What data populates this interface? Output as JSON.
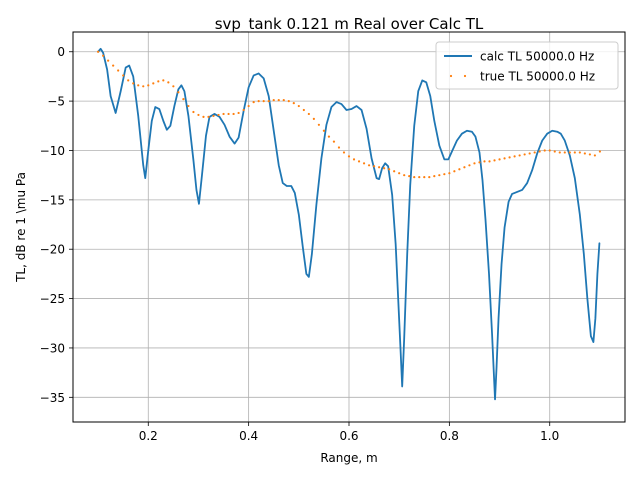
{
  "chart_data": {
    "type": "line",
    "title": "svp_tank 0.121 m Real over Calc TL",
    "xlabel": "Range, m",
    "ylabel": "TL, dB re 1 \\mu Pa",
    "xlim": [
      0.05,
      1.15
    ],
    "ylim": [
      -37.5,
      2
    ],
    "xticks": [
      0.2,
      0.4,
      0.6,
      0.8,
      1.0
    ],
    "xtick_labels": [
      "0.2",
      "0.4",
      "0.6",
      "0.8",
      "1.0"
    ],
    "yticks": [
      0,
      -5,
      -10,
      -15,
      -20,
      -25,
      -30,
      -35
    ],
    "ytick_labels": [
      "0",
      "−5",
      "−10",
      "−15",
      "−20",
      "−25",
      "−30",
      "−35"
    ],
    "grid": true,
    "legend": "upper right",
    "series": [
      {
        "name": "calc TL 50000.0 Hz",
        "style": "solid",
        "color": "#1f77b4",
        "points": [
          [
            0.1,
            0.0
          ],
          [
            0.105,
            0.3
          ],
          [
            0.11,
            -0.1
          ],
          [
            0.118,
            -1.8
          ],
          [
            0.125,
            -4.5
          ],
          [
            0.135,
            -6.2
          ],
          [
            0.145,
            -4.0
          ],
          [
            0.155,
            -1.6
          ],
          [
            0.162,
            -1.4
          ],
          [
            0.17,
            -2.5
          ],
          [
            0.18,
            -6.5
          ],
          [
            0.19,
            -11.5
          ],
          [
            0.194,
            -12.8
          ],
          [
            0.2,
            -10.0
          ],
          [
            0.207,
            -7.0
          ],
          [
            0.214,
            -5.6
          ],
          [
            0.222,
            -5.8
          ],
          [
            0.23,
            -7.0
          ],
          [
            0.237,
            -7.9
          ],
          [
            0.244,
            -7.5
          ],
          [
            0.252,
            -5.5
          ],
          [
            0.26,
            -3.8
          ],
          [
            0.266,
            -3.4
          ],
          [
            0.272,
            -4.0
          ],
          [
            0.28,
            -6.5
          ],
          [
            0.29,
            -11.0
          ],
          [
            0.296,
            -14.0
          ],
          [
            0.301,
            -15.4
          ],
          [
            0.307,
            -12.5
          ],
          [
            0.315,
            -8.5
          ],
          [
            0.322,
            -6.6
          ],
          [
            0.332,
            -6.3
          ],
          [
            0.342,
            -6.6
          ],
          [
            0.352,
            -7.4
          ],
          [
            0.362,
            -8.6
          ],
          [
            0.372,
            -9.3
          ],
          [
            0.38,
            -8.7
          ],
          [
            0.39,
            -6.0
          ],
          [
            0.4,
            -3.6
          ],
          [
            0.41,
            -2.4
          ],
          [
            0.42,
            -2.2
          ],
          [
            0.43,
            -2.7
          ],
          [
            0.44,
            -4.5
          ],
          [
            0.45,
            -8.0
          ],
          [
            0.46,
            -11.5
          ],
          [
            0.468,
            -13.3
          ],
          [
            0.476,
            -13.6
          ],
          [
            0.485,
            -13.6
          ],
          [
            0.492,
            -14.3
          ],
          [
            0.5,
            -16.5
          ],
          [
            0.508,
            -19.8
          ],
          [
            0.515,
            -22.5
          ],
          [
            0.52,
            -22.8
          ],
          [
            0.526,
            -20.5
          ],
          [
            0.535,
            -15.5
          ],
          [
            0.545,
            -10.8
          ],
          [
            0.555,
            -7.4
          ],
          [
            0.565,
            -5.6
          ],
          [
            0.575,
            -5.1
          ],
          [
            0.585,
            -5.3
          ],
          [
            0.595,
            -5.9
          ],
          [
            0.605,
            -5.8
          ],
          [
            0.615,
            -5.5
          ],
          [
            0.625,
            -5.9
          ],
          [
            0.635,
            -7.8
          ],
          [
            0.645,
            -10.8
          ],
          [
            0.655,
            -12.8
          ],
          [
            0.66,
            -12.9
          ],
          [
            0.666,
            -11.8
          ],
          [
            0.672,
            -11.3
          ],
          [
            0.678,
            -11.6
          ],
          [
            0.686,
            -14.5
          ],
          [
            0.693,
            -19.5
          ],
          [
            0.698,
            -25.0
          ],
          [
            0.703,
            -30.5
          ],
          [
            0.706,
            -33.9
          ],
          [
            0.71,
            -29.0
          ],
          [
            0.716,
            -20.5
          ],
          [
            0.722,
            -13.5
          ],
          [
            0.73,
            -7.5
          ],
          [
            0.738,
            -4.0
          ],
          [
            0.746,
            -2.9
          ],
          [
            0.754,
            -3.1
          ],
          [
            0.762,
            -4.5
          ],
          [
            0.77,
            -7.0
          ],
          [
            0.78,
            -9.5
          ],
          [
            0.79,
            -10.9
          ],
          [
            0.798,
            -10.9
          ],
          [
            0.806,
            -10.0
          ],
          [
            0.815,
            -9.0
          ],
          [
            0.825,
            -8.3
          ],
          [
            0.835,
            -8.0
          ],
          [
            0.845,
            -8.1
          ],
          [
            0.852,
            -8.6
          ],
          [
            0.86,
            -10.2
          ],
          [
            0.866,
            -13.0
          ],
          [
            0.872,
            -17.0
          ],
          [
            0.879,
            -22.5
          ],
          [
            0.885,
            -28.5
          ],
          [
            0.889,
            -33.0
          ],
          [
            0.891,
            -35.2
          ],
          [
            0.894,
            -32.0
          ],
          [
            0.898,
            -27.0
          ],
          [
            0.904,
            -21.5
          ],
          [
            0.91,
            -17.8
          ],
          [
            0.918,
            -15.2
          ],
          [
            0.925,
            -14.4
          ],
          [
            0.935,
            -14.2
          ],
          [
            0.945,
            -14.0
          ],
          [
            0.955,
            -13.3
          ],
          [
            0.965,
            -12.0
          ],
          [
            0.975,
            -10.3
          ],
          [
            0.985,
            -9.0
          ],
          [
            0.995,
            -8.3
          ],
          [
            1.005,
            -8.0
          ],
          [
            1.015,
            -8.1
          ],
          [
            1.022,
            -8.3
          ],
          [
            1.03,
            -9.0
          ],
          [
            1.04,
            -10.5
          ],
          [
            1.05,
            -12.8
          ],
          [
            1.06,
            -16.5
          ],
          [
            1.068,
            -20.5
          ],
          [
            1.075,
            -25.0
          ],
          [
            1.082,
            -28.8
          ],
          [
            1.087,
            -29.4
          ],
          [
            1.091,
            -27.0
          ],
          [
            1.095,
            -22.5
          ],
          [
            1.099,
            -19.4
          ]
        ]
      },
      {
        "name": "true TL 50000.0 Hz",
        "style": "dotted",
        "color": "#ff7f0e",
        "points": [
          [
            0.1,
            0.0
          ],
          [
            0.11,
            -0.4
          ],
          [
            0.12,
            -0.9
          ],
          [
            0.13,
            -1.4
          ],
          [
            0.14,
            -1.9
          ],
          [
            0.15,
            -2.4
          ],
          [
            0.16,
            -2.9
          ],
          [
            0.17,
            -3.2
          ],
          [
            0.18,
            -3.4
          ],
          [
            0.19,
            -3.5
          ],
          [
            0.2,
            -3.4
          ],
          [
            0.21,
            -3.2
          ],
          [
            0.22,
            -3.0
          ],
          [
            0.23,
            -2.9
          ],
          [
            0.24,
            -3.1
          ],
          [
            0.25,
            -3.5
          ],
          [
            0.26,
            -4.1
          ],
          [
            0.27,
            -4.8
          ],
          [
            0.28,
            -5.5
          ],
          [
            0.29,
            -6.1
          ],
          [
            0.3,
            -6.4
          ],
          [
            0.31,
            -6.6
          ],
          [
            0.32,
            -6.6
          ],
          [
            0.33,
            -6.5
          ],
          [
            0.34,
            -6.4
          ],
          [
            0.35,
            -6.3
          ],
          [
            0.36,
            -6.3
          ],
          [
            0.37,
            -6.3
          ],
          [
            0.38,
            -6.2
          ],
          [
            0.39,
            -5.9
          ],
          [
            0.4,
            -5.5
          ],
          [
            0.41,
            -5.1
          ],
          [
            0.42,
            -5.0
          ],
          [
            0.43,
            -5.0
          ],
          [
            0.44,
            -5.0
          ],
          [
            0.45,
            -4.9
          ],
          [
            0.46,
            -4.9
          ],
          [
            0.47,
            -4.9
          ],
          [
            0.48,
            -5.0
          ],
          [
            0.49,
            -5.2
          ],
          [
            0.5,
            -5.5
          ],
          [
            0.51,
            -5.9
          ],
          [
            0.52,
            -6.3
          ],
          [
            0.53,
            -6.8
          ],
          [
            0.54,
            -7.4
          ],
          [
            0.55,
            -8.0
          ],
          [
            0.56,
            -8.6
          ],
          [
            0.57,
            -9.1
          ],
          [
            0.58,
            -9.7
          ],
          [
            0.59,
            -10.2
          ],
          [
            0.6,
            -10.6
          ],
          [
            0.61,
            -10.9
          ],
          [
            0.62,
            -11.1
          ],
          [
            0.63,
            -11.3
          ],
          [
            0.64,
            -11.5
          ],
          [
            0.65,
            -11.6
          ],
          [
            0.66,
            -11.7
          ],
          [
            0.67,
            -11.8
          ],
          [
            0.68,
            -11.9
          ],
          [
            0.69,
            -12.1
          ],
          [
            0.7,
            -12.3
          ],
          [
            0.71,
            -12.5
          ],
          [
            0.72,
            -12.6
          ],
          [
            0.73,
            -12.7
          ],
          [
            0.74,
            -12.7
          ],
          [
            0.75,
            -12.7
          ],
          [
            0.76,
            -12.7
          ],
          [
            0.77,
            -12.6
          ],
          [
            0.78,
            -12.5
          ],
          [
            0.79,
            -12.4
          ],
          [
            0.8,
            -12.3
          ],
          [
            0.81,
            -12.1
          ],
          [
            0.82,
            -11.9
          ],
          [
            0.83,
            -11.7
          ],
          [
            0.84,
            -11.5
          ],
          [
            0.85,
            -11.3
          ],
          [
            0.86,
            -11.2
          ],
          [
            0.87,
            -11.1
          ],
          [
            0.88,
            -11.1
          ],
          [
            0.89,
            -11.0
          ],
          [
            0.9,
            -10.9
          ],
          [
            0.91,
            -10.8
          ],
          [
            0.92,
            -10.7
          ],
          [
            0.93,
            -10.6
          ],
          [
            0.94,
            -10.5
          ],
          [
            0.95,
            -10.4
          ],
          [
            0.96,
            -10.3
          ],
          [
            0.97,
            -10.2
          ],
          [
            0.98,
            -10.1
          ],
          [
            0.99,
            -10.0
          ],
          [
            1.0,
            -10.0
          ],
          [
            1.01,
            -10.1
          ],
          [
            1.02,
            -10.2
          ],
          [
            1.03,
            -10.2
          ],
          [
            1.04,
            -10.2
          ],
          [
            1.05,
            -10.2
          ],
          [
            1.06,
            -10.2
          ],
          [
            1.07,
            -10.3
          ],
          [
            1.08,
            -10.4
          ],
          [
            1.09,
            -10.5
          ],
          [
            1.1,
            -10.1
          ]
        ]
      }
    ]
  }
}
